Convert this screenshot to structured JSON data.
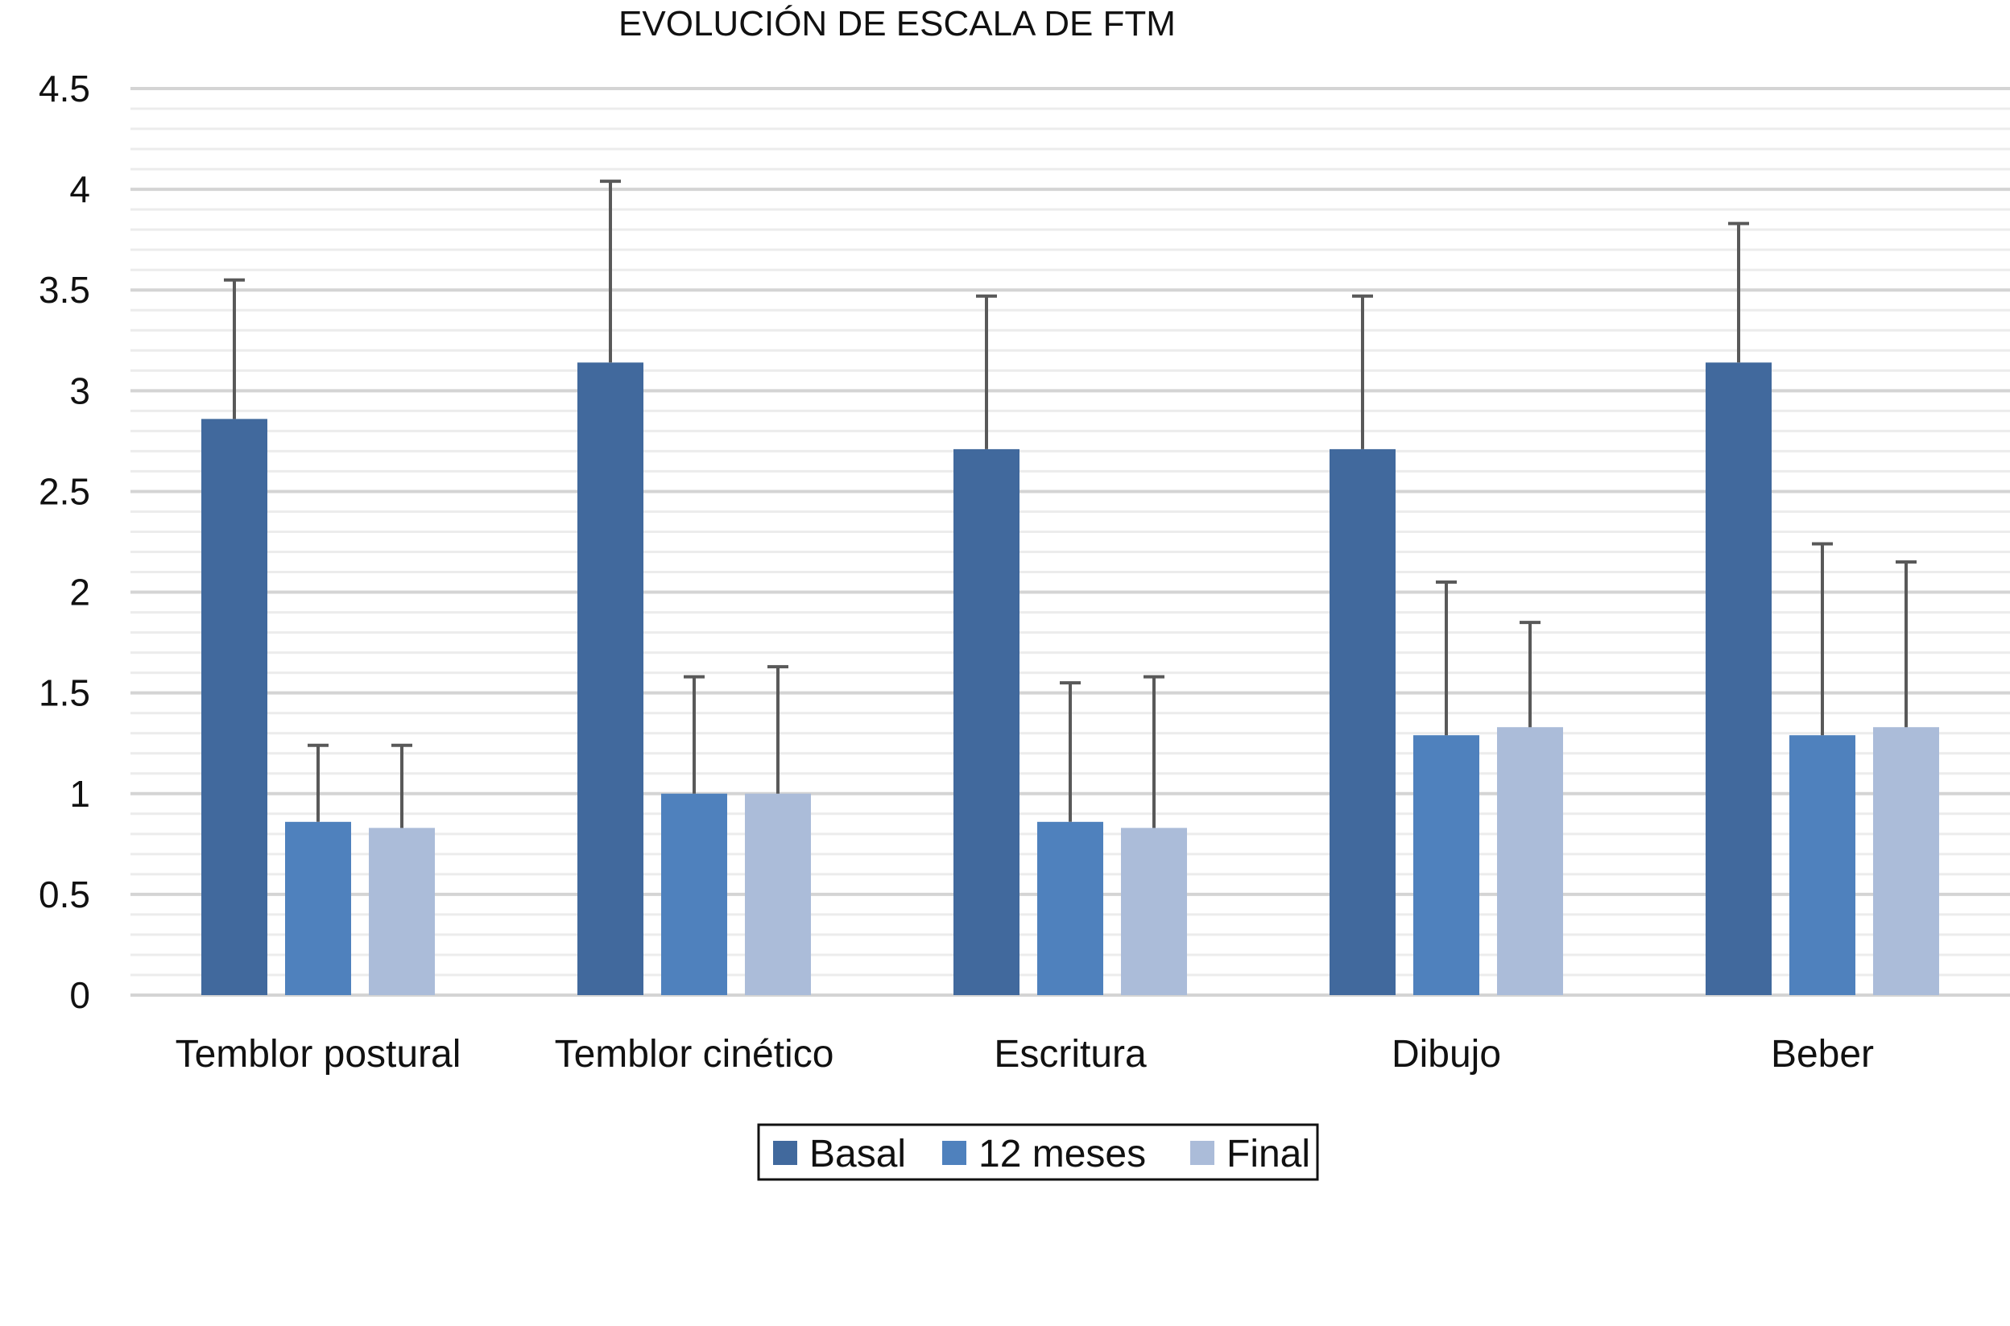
{
  "chart_data": {
    "type": "bar",
    "title": "EVOLUCIÓN DE ESCALA DE FTM",
    "xlabel": "",
    "ylabel": "",
    "ylim": [
      0,
      4.5
    ],
    "y_ticks": [
      "0",
      "0.5",
      "1",
      "1.5",
      "2",
      "2.5",
      "3",
      "3.5",
      "4",
      "4.5"
    ],
    "y_tick_values": [
      0,
      0.5,
      1,
      1.5,
      2,
      2.5,
      3,
      3.5,
      4,
      4.5
    ],
    "minor_grid_step": 0.1,
    "grid": true,
    "legend_position": "bottom",
    "categories": [
      "Temblor postural",
      "Temblor cinético",
      "Escritura",
      "Dibujo",
      "Beber"
    ],
    "series": [
      {
        "name": "Basal",
        "color": "#41699d",
        "values": [
          2.86,
          3.14,
          2.71,
          2.71,
          3.14
        ],
        "error_upper": [
          3.55,
          4.04,
          3.47,
          3.47,
          3.83
        ]
      },
      {
        "name": "12 meses",
        "color": "#4f81bd",
        "values": [
          0.86,
          1.0,
          0.86,
          1.29,
          1.29
        ],
        "error_upper": [
          1.24,
          1.58,
          1.55,
          2.05,
          2.24
        ]
      },
      {
        "name": "Final",
        "color": "#abbcd9",
        "values": [
          0.83,
          1.0,
          0.83,
          1.33,
          1.33
        ],
        "error_upper": [
          1.24,
          1.63,
          1.58,
          1.85,
          2.15
        ]
      }
    ]
  }
}
